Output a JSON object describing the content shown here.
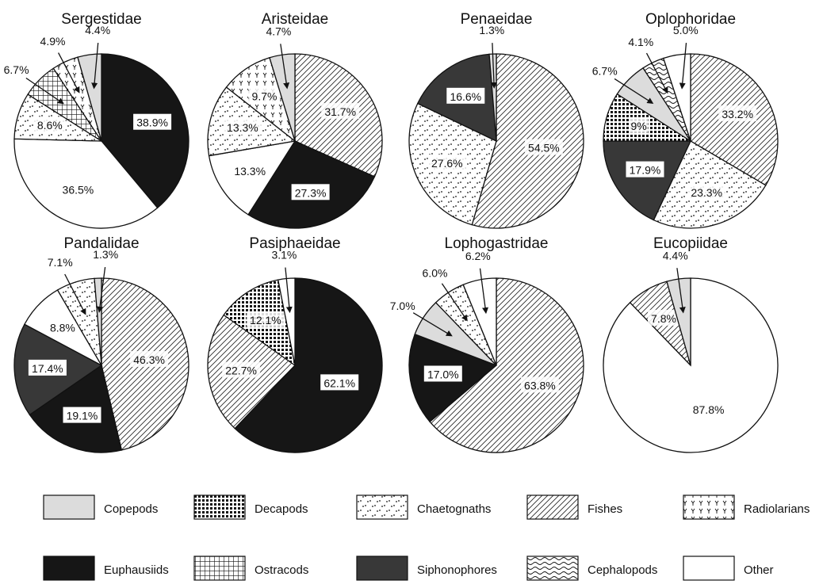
{
  "categories": [
    "Copepods",
    "Decapods",
    "Chaetognaths",
    "Fishes",
    "Radiolarians",
    "Euphausiids",
    "Ostracods",
    "Siphonophores",
    "Cephalopods",
    "Other"
  ],
  "patterns": {
    "Copepods": "light-gray",
    "Decapods": "dense-dots",
    "Chaetognaths": "sparse-dots",
    "Fishes": "diagonal-hatch",
    "Radiolarians": "y-marks",
    "Euphausiids": "solid-black",
    "Ostracods": "grid",
    "Siphonophores": "solid-dark-gray",
    "Cephalopods": "waves",
    "Other": "white"
  },
  "chart_data": [
    {
      "type": "pie",
      "title": "Sergestidae",
      "slices": [
        {
          "category": "Euphausiids",
          "value": 38.9,
          "label": "38.9%"
        },
        {
          "category": "Other",
          "value": 36.5,
          "label": "36.5%"
        },
        {
          "category": "Chaetognaths",
          "value": 8.6,
          "label": "8.6%"
        },
        {
          "category": "Ostracods",
          "value": 6.7,
          "label": "6.7%"
        },
        {
          "category": "Radiolarians",
          "value": 4.9,
          "label": "4.9%"
        },
        {
          "category": "Copepods",
          "value": 4.4,
          "label": "4.4%"
        }
      ]
    },
    {
      "type": "pie",
      "title": "Aristeidae",
      "slices": [
        {
          "category": "Fishes",
          "value": 31.7,
          "label": "31.7%"
        },
        {
          "category": "Euphausiids",
          "value": 27.3,
          "label": "27.3%"
        },
        {
          "category": "Other",
          "value": 13.3,
          "label": "13.3%"
        },
        {
          "category": "Chaetognaths",
          "value": 13.3,
          "label": "13.3%"
        },
        {
          "category": "Radiolarians",
          "value": 9.7,
          "label": "9.7%"
        },
        {
          "category": "Copepods",
          "value": 4.7,
          "label": "4.7%"
        }
      ]
    },
    {
      "type": "pie",
      "title": "Penaeidae",
      "slices": [
        {
          "category": "Fishes",
          "value": 54.5,
          "label": "54.5%"
        },
        {
          "category": "Chaetognaths",
          "value": 27.6,
          "label": "27.6%"
        },
        {
          "category": "Siphonophores",
          "value": 16.6,
          "label": "16.6%"
        },
        {
          "category": "Copepods",
          "value": 1.3,
          "label": "1.3%"
        }
      ]
    },
    {
      "type": "pie",
      "title": "Oplophoridae",
      "slices": [
        {
          "category": "Fishes",
          "value": 33.2,
          "label": "33.2%"
        },
        {
          "category": "Chaetognaths",
          "value": 23.3,
          "label": "23.3%"
        },
        {
          "category": "Siphonophores",
          "value": 17.9,
          "label": "17.9%"
        },
        {
          "category": "Decapods",
          "value": 9,
          "label": "9%"
        },
        {
          "category": "Copepods",
          "value": 6.7,
          "label": "6.7%"
        },
        {
          "category": "Cephalopods",
          "value": 4.1,
          "label": "4.1%"
        },
        {
          "category": "Other",
          "value": 5.0,
          "label": "5.0%"
        }
      ]
    },
    {
      "type": "pie",
      "title": "Pandalidae",
      "slices": [
        {
          "category": "Fishes",
          "value": 46.3,
          "label": "46.3%"
        },
        {
          "category": "Euphausiids",
          "value": 19.1,
          "label": "19.1%"
        },
        {
          "category": "Siphonophores",
          "value": 17.4,
          "label": "17.4%"
        },
        {
          "category": "Other",
          "value": 8.8,
          "label": "8.8%"
        },
        {
          "category": "Chaetognaths",
          "value": 7.1,
          "label": "7.1%"
        },
        {
          "category": "Copepods",
          "value": 1.3,
          "label": "1.3%"
        }
      ]
    },
    {
      "type": "pie",
      "title": "Pasiphaeidae",
      "slices": [
        {
          "category": "Euphausiids",
          "value": 62.1,
          "label": "62.1%"
        },
        {
          "category": "Fishes",
          "value": 22.7,
          "label": "22.7%"
        },
        {
          "category": "Decapods",
          "value": 12.1,
          "label": "12.1%"
        },
        {
          "category": "Other",
          "value": 3.1,
          "label": "3.1%"
        }
      ]
    },
    {
      "type": "pie",
      "title": "Lophogastridae",
      "slices": [
        {
          "category": "Fishes",
          "value": 63.8,
          "label": "63.8%"
        },
        {
          "category": "Euphausiids",
          "value": 17.0,
          "label": "17.0%"
        },
        {
          "category": "Copepods",
          "value": 7.0,
          "label": "7.0%"
        },
        {
          "category": "Chaetognaths",
          "value": 6.0,
          "label": "6.0%"
        },
        {
          "category": "Other",
          "value": 6.2,
          "label": "6.2%"
        }
      ]
    },
    {
      "type": "pie",
      "title": "Eucopiidae",
      "slices": [
        {
          "category": "Other",
          "value": 87.8,
          "label": "87.8%"
        },
        {
          "category": "Fishes",
          "value": 7.8,
          "label": "7.8%"
        },
        {
          "category": "Copepods",
          "value": 4.4,
          "label": "4.4%"
        }
      ]
    }
  ]
}
